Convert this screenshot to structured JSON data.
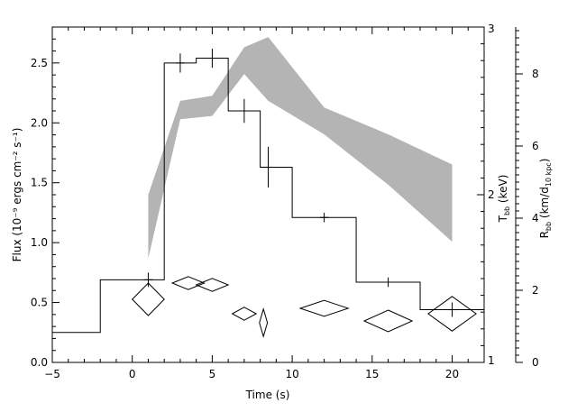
{
  "chart_data": {
    "type": "line",
    "title": "",
    "xlabel": "Time (s)",
    "ylabel_left": "Flux (10⁻⁹ ergs cm⁻² s⁻¹)",
    "ylabel_temp": "T_bb (keV)",
    "ylabel_temp_main": "T",
    "ylabel_temp_sub": "bb",
    "ylabel_temp_rest": " (keV)",
    "ylabel_radius_main": "R",
    "ylabel_radius_sub": "bb",
    "ylabel_radius_mid": " (km/d",
    "ylabel_radius_sub2": "10 kpc",
    "ylabel_radius_end": ")",
    "xlim": [
      -5,
      22
    ],
    "ylim_flux": [
      0,
      2.8
    ],
    "ylim_temp": [
      1,
      3
    ],
    "ylim_radius": [
      0,
      9.3
    ],
    "grid": false,
    "x_ticks": [
      -5,
      0,
      5,
      10,
      15,
      20
    ],
    "x_tick_labels": [
      "−5",
      "0",
      "5",
      "10",
      "15",
      "20"
    ],
    "flux_ticks": [
      0,
      0.5,
      1.0,
      1.5,
      2.0,
      2.5
    ],
    "flux_tick_labels": [
      "0.0",
      "0.5",
      "1.0",
      "1.5",
      "2.0",
      "2.5"
    ],
    "temp_ticks": [
      1,
      2,
      3
    ],
    "temp_tick_labels": [
      "1",
      "2",
      "3"
    ],
    "radius_ticks": [
      0,
      2,
      4,
      6,
      8
    ],
    "radius_tick_labels": [
      "0",
      "2",
      "4",
      "6",
      "8"
    ],
    "flux_histogram": {
      "name": "Flux",
      "edges": [
        -5,
        -2,
        2,
        4,
        6,
        8,
        10,
        14,
        18,
        22
      ],
      "values": [
        0.25,
        0.69,
        2.5,
        2.54,
        2.1,
        1.63,
        1.21,
        0.67,
        0.44
      ]
    },
    "flux_error_bars": [
      {
        "x": 1,
        "y": 0.69,
        "err": 0.06
      },
      {
        "x": 3,
        "y": 2.5,
        "err": 0.08
      },
      {
        "x": 5,
        "y": 2.54,
        "err": 0.08
      },
      {
        "x": 7,
        "y": 2.1,
        "err": 0.1
      },
      {
        "x": 8.5,
        "y": 1.63,
        "err": 0.17
      },
      {
        "x": 12,
        "y": 1.21,
        "err": 0.04
      },
      {
        "x": 16,
        "y": 0.67,
        "err": 0.04
      },
      {
        "x": 20,
        "y": 0.44,
        "err": 0.06
      }
    ],
    "temperature_band": {
      "name": "T_bb",
      "color": "#b4b4b4",
      "x": [
        1,
        3,
        5,
        7,
        8.5,
        12,
        16,
        20
      ],
      "upper": [
        2.0,
        2.56,
        2.59,
        2.88,
        2.94,
        2.52,
        2.36,
        2.18
      ],
      "lower": [
        1.62,
        2.45,
        2.47,
        2.72,
        2.56,
        2.36,
        2.06,
        1.72
      ]
    },
    "radius_diamonds": {
      "name": "R_bb",
      "points": [
        {
          "x": 1,
          "y": 1.75,
          "dx": 1.0,
          "dy": 0.45
        },
        {
          "x": 3.5,
          "y": 2.2,
          "dx": 1.0,
          "dy": 0.18
        },
        {
          "x": 5,
          "y": 2.15,
          "dx": 1.0,
          "dy": 0.18
        },
        {
          "x": 7,
          "y": 1.35,
          "dx": 0.75,
          "dy": 0.18
        },
        {
          "x": 8.2,
          "y": 1.1,
          "dx": 0.25,
          "dy": 0.38
        },
        {
          "x": 12,
          "y": 1.5,
          "dx": 1.5,
          "dy": 0.22
        },
        {
          "x": 16,
          "y": 1.15,
          "dx": 1.5,
          "dy": 0.3
        },
        {
          "x": 20,
          "y": 1.35,
          "dx": 1.5,
          "dy": 0.48
        }
      ]
    }
  }
}
